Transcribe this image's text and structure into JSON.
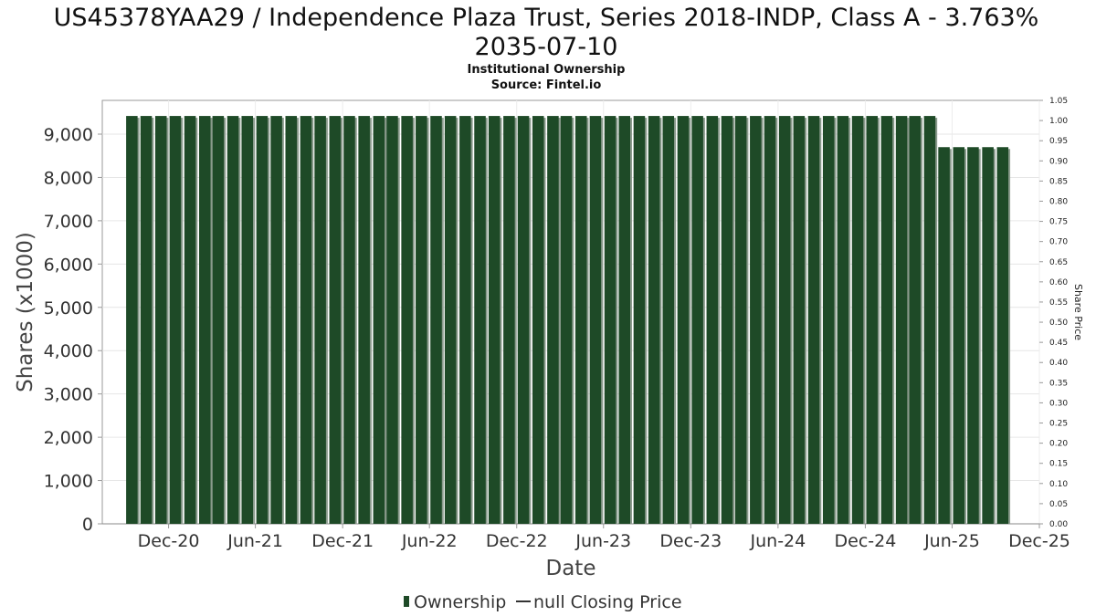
{
  "chart_data": {
    "type": "bar",
    "title_line1": "US45378YAA29 / Independence Plaza Trust, Series 2018-INDP, Class A - 3.763%",
    "title_line2": "2035-07-10",
    "subtitle_line1": "Institutional Ownership",
    "subtitle_line2": "Source: Fintel.io",
    "xlabel": "Date",
    "ylabel": "Shares (x1000)",
    "y2label": "Share Price",
    "ylim": [
      0,
      9780
    ],
    "y2lim": [
      0,
      1.05
    ],
    "yticks": [
      0,
      1000,
      2000,
      3000,
      4000,
      5000,
      6000,
      7000,
      8000,
      9000
    ],
    "ytick_labels": [
      "0",
      "1,000",
      "2,000",
      "3,000",
      "4,000",
      "5,000",
      "6,000",
      "7,000",
      "8,000",
      "9,000"
    ],
    "y2ticks": [
      0.0,
      0.05,
      0.1,
      0.15,
      0.2,
      0.25,
      0.3,
      0.35,
      0.4,
      0.45,
      0.5,
      0.55,
      0.6,
      0.65,
      0.7,
      0.75,
      0.8,
      0.85,
      0.9,
      0.95,
      1.0,
      1.05
    ],
    "y2tick_labels": [
      "0.00",
      "0.05",
      "0.10",
      "0.15",
      "0.20",
      "0.25",
      "0.30",
      "0.35",
      "0.40",
      "0.45",
      "0.50",
      "0.55",
      "0.60",
      "0.65",
      "0.70",
      "0.75",
      "0.80",
      "0.85",
      "0.90",
      "0.95",
      "1.00",
      "1.05"
    ],
    "xlim": [
      "2020-07-15",
      "2025-12-01"
    ],
    "xticks": [
      "2020-12-01",
      "2021-06-01",
      "2021-12-01",
      "2022-06-01",
      "2022-12-01",
      "2023-06-01",
      "2023-12-01",
      "2024-06-01",
      "2024-12-01",
      "2025-06-01",
      "2025-12-01"
    ],
    "xtick_labels": [
      "Dec-20",
      "Jun-21",
      "Dec-21",
      "Jun-22",
      "Dec-22",
      "Jun-23",
      "Dec-23",
      "Jun-24",
      "Dec-24",
      "Jun-25",
      "Dec-25"
    ],
    "series": [
      {
        "name": "Ownership",
        "color": "#1e4a27",
        "x": [
          "2020-09-15",
          "2020-10-15",
          "2020-11-15",
          "2020-12-15",
          "2021-01-15",
          "2021-02-15",
          "2021-03-15",
          "2021-04-15",
          "2021-05-15",
          "2021-06-15",
          "2021-07-15",
          "2021-08-15",
          "2021-09-15",
          "2021-10-15",
          "2021-11-15",
          "2021-12-15",
          "2022-01-15",
          "2022-02-15",
          "2022-03-15",
          "2022-04-15",
          "2022-05-15",
          "2022-06-15",
          "2022-07-15",
          "2022-08-15",
          "2022-09-15",
          "2022-10-15",
          "2022-11-15",
          "2022-12-15",
          "2023-01-15",
          "2023-02-15",
          "2023-03-15",
          "2023-04-15",
          "2023-05-15",
          "2023-06-15",
          "2023-07-15",
          "2023-08-15",
          "2023-09-15",
          "2023-10-15",
          "2023-11-15",
          "2023-12-15",
          "2024-01-15",
          "2024-02-15",
          "2024-03-15",
          "2024-04-15",
          "2024-05-15",
          "2024-06-15",
          "2024-07-15",
          "2024-08-15",
          "2024-09-15",
          "2024-10-15",
          "2024-11-15",
          "2024-12-15",
          "2025-01-15",
          "2025-02-15",
          "2025-03-15",
          "2025-04-15",
          "2025-05-15",
          "2025-06-15",
          "2025-07-15",
          "2025-08-15",
          "2025-09-15"
        ],
        "values": [
          9420,
          9420,
          9420,
          9420,
          9420,
          9420,
          9420,
          9420,
          9420,
          9420,
          9420,
          9420,
          9420,
          9420,
          9420,
          9420,
          9420,
          9420,
          9420,
          9420,
          9420,
          9420,
          9420,
          9420,
          9420,
          9420,
          9420,
          9420,
          9420,
          9420,
          9420,
          9420,
          9420,
          9420,
          9420,
          9420,
          9420,
          9420,
          9420,
          9420,
          9420,
          9420,
          9420,
          9420,
          9420,
          9420,
          9420,
          9420,
          9420,
          9420,
          9420,
          9420,
          9420,
          9420,
          9420,
          9420,
          8700,
          8700,
          8700,
          8700,
          8700
        ]
      },
      {
        "name": "null Closing Price",
        "color": "#333333",
        "values": []
      }
    ],
    "grid": true,
    "legend_position": "bottom-center"
  }
}
